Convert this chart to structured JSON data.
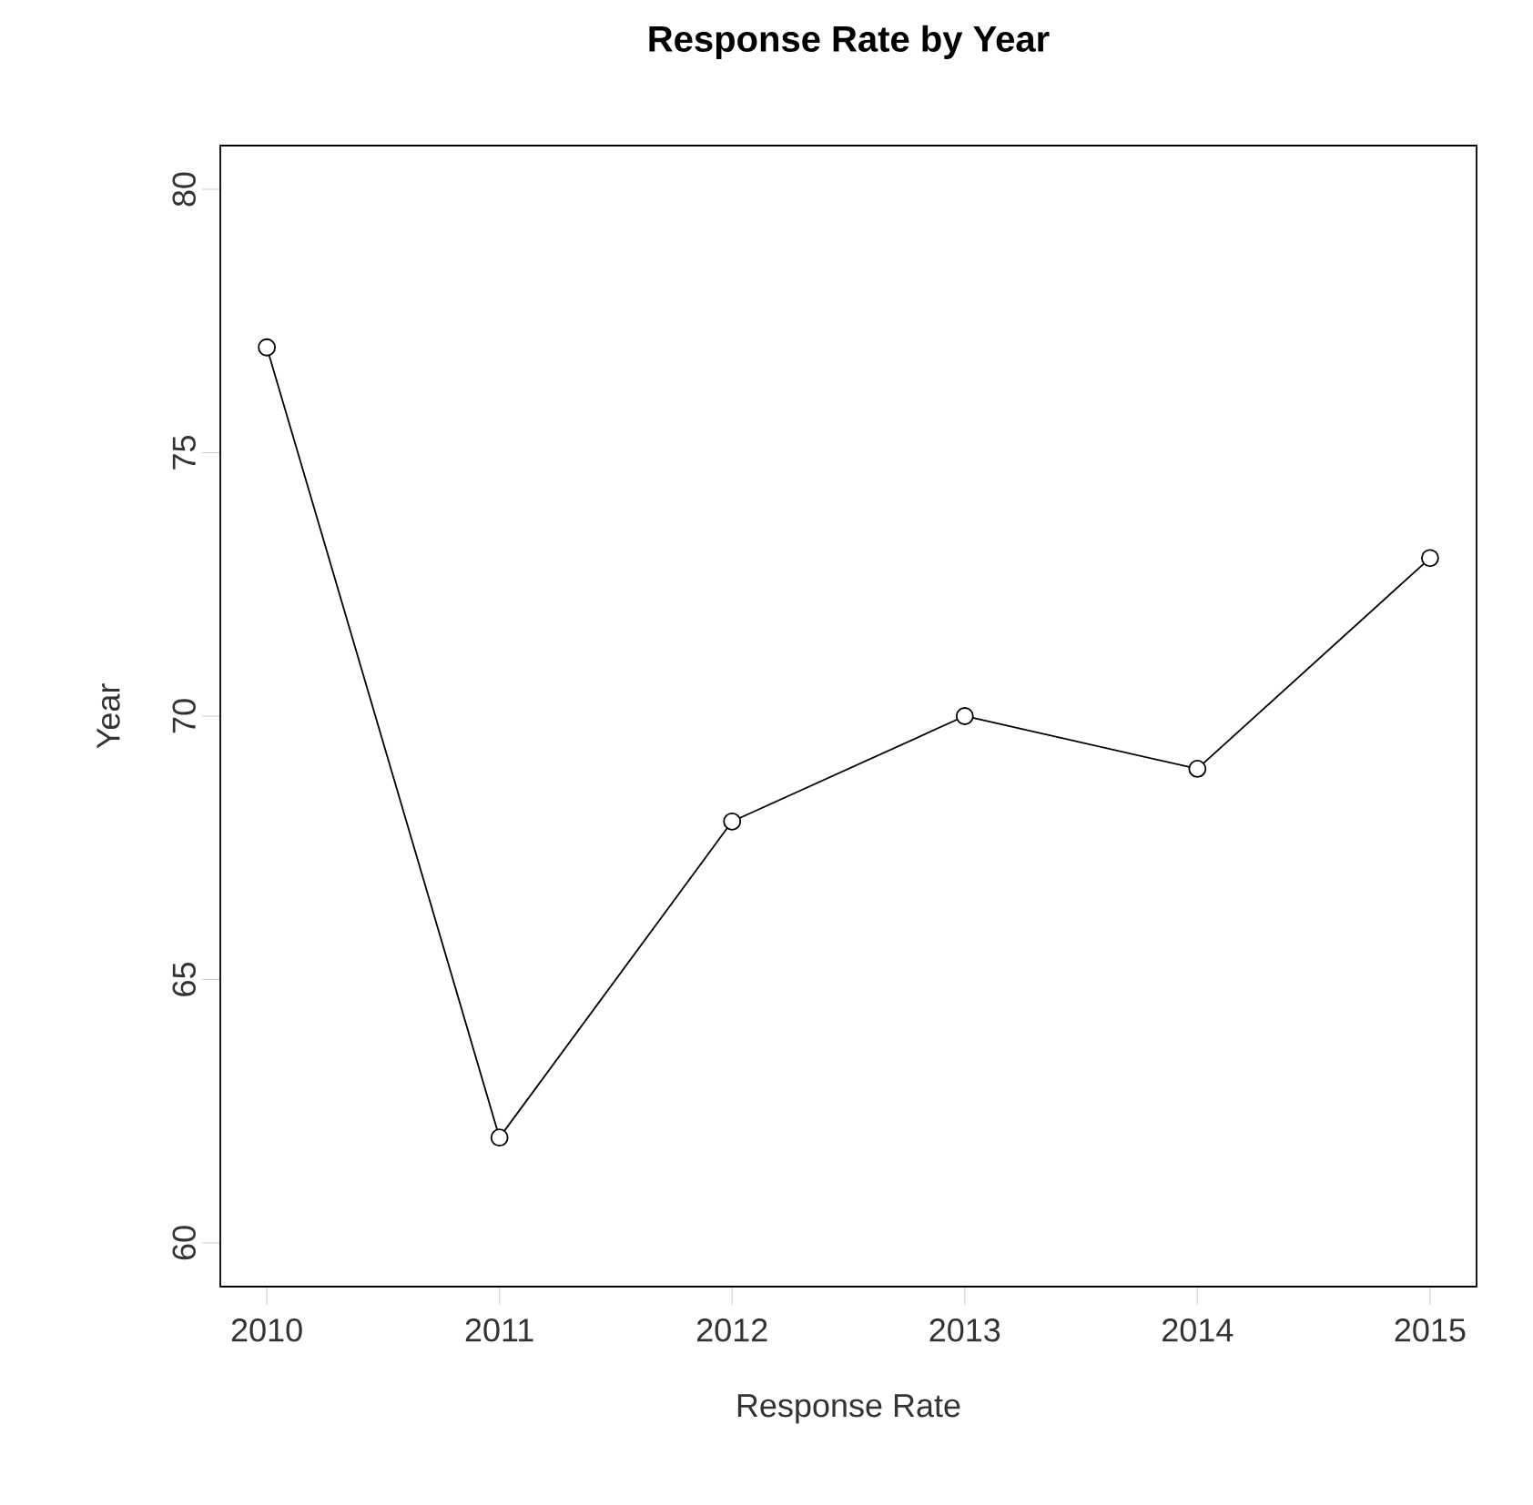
{
  "chart_data": {
    "type": "line",
    "title": "Response Rate by Year",
    "xlabel": "Response Rate",
    "ylabel": "Year",
    "x": [
      2010,
      2011,
      2012,
      2013,
      2014,
      2015
    ],
    "values": [
      77,
      62,
      68,
      70,
      69,
      73
    ],
    "color": "#000000",
    "marker": "circle",
    "line_style": "solid",
    "xlim": [
      2009.8,
      2015.2
    ],
    "xticks": [
      2010,
      2011,
      2012,
      2013,
      2014,
      2015
    ],
    "ylim": [
      59.17,
      80.83
    ],
    "yticks": [
      60,
      65,
      70,
      75,
      80
    ]
  }
}
